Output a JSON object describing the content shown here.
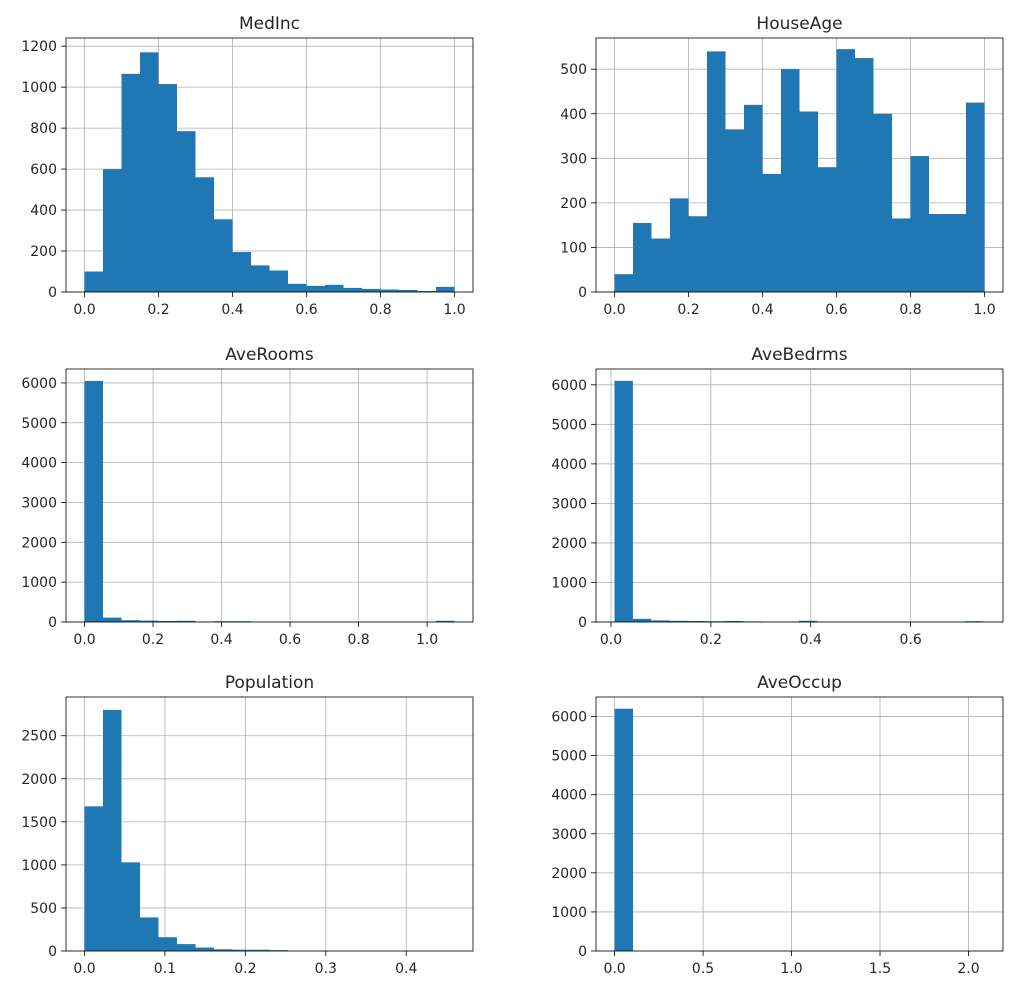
{
  "chart_data": [
    {
      "type": "bar",
      "title": "MedInc",
      "grid": true,
      "color": "#1f77b4",
      "xlim": [
        -0.05,
        1.05
      ],
      "ylim": [
        0,
        1240
      ],
      "xticks": [
        0.0,
        0.2,
        0.4,
        0.6,
        0.8,
        1.0
      ],
      "xtick_labels": [
        "0.0",
        "0.2",
        "0.4",
        "0.6",
        "0.8",
        "1.0"
      ],
      "yticks": [
        0,
        200,
        400,
        600,
        800,
        1000,
        1200
      ],
      "ytick_labels": [
        "0",
        "200",
        "400",
        "600",
        "800",
        "1000",
        "1200"
      ],
      "bin_start": 0.0,
      "bin_end": 1.0,
      "values": [
        100,
        600,
        1065,
        1170,
        1015,
        785,
        560,
        355,
        195,
        130,
        105,
        40,
        30,
        35,
        20,
        15,
        12,
        10,
        5,
        25
      ]
    },
    {
      "type": "bar",
      "title": "HouseAge",
      "grid": true,
      "color": "#1f77b4",
      "xlim": [
        -0.05,
        1.05
      ],
      "ylim": [
        0,
        570
      ],
      "xticks": [
        0.0,
        0.2,
        0.4,
        0.6,
        0.8,
        1.0
      ],
      "xtick_labels": [
        "0.0",
        "0.2",
        "0.4",
        "0.6",
        "0.8",
        "1.0"
      ],
      "yticks": [
        0,
        100,
        200,
        300,
        400,
        500
      ],
      "ytick_labels": [
        "0",
        "100",
        "200",
        "300",
        "400",
        "500"
      ],
      "bin_start": 0.0,
      "bin_end": 1.0,
      "values": [
        40,
        155,
        120,
        210,
        170,
        540,
        365,
        420,
        265,
        500,
        405,
        280,
        545,
        525,
        400,
        165,
        305,
        175,
        175,
        425
      ]
    },
    {
      "type": "bar",
      "title": "AveRooms",
      "grid": true,
      "color": "#1f77b4",
      "xlim": [
        -0.054,
        1.134
      ],
      "ylim": [
        0,
        6350
      ],
      "xticks": [
        0.0,
        0.2,
        0.4,
        0.6,
        0.8,
        1.0
      ],
      "xtick_labels": [
        "0.0",
        "0.2",
        "0.4",
        "0.6",
        "0.8",
        "1.0"
      ],
      "yticks": [
        0,
        1000,
        2000,
        3000,
        4000,
        5000,
        6000
      ],
      "ytick_labels": [
        "0",
        "1000",
        "2000",
        "3000",
        "4000",
        "5000",
        "6000"
      ],
      "bin_start": 0.0,
      "bin_end": 1.08,
      "values": [
        6050,
        110,
        45,
        35,
        25,
        30,
        5,
        20,
        20,
        0,
        0,
        0,
        0,
        0,
        0,
        0,
        0,
        0,
        0,
        30
      ]
    },
    {
      "type": "bar",
      "title": "AveBedrms",
      "grid": true,
      "color": "#1f77b4",
      "xlim": [
        -0.03,
        0.785
      ],
      "ylim": [
        0,
        6400
      ],
      "xticks": [
        0.0,
        0.2,
        0.4,
        0.6
      ],
      "xtick_labels": [
        "0.0",
        "0.2",
        "0.4",
        "0.6"
      ],
      "yticks": [
        0,
        1000,
        2000,
        3000,
        4000,
        5000,
        6000
      ],
      "ytick_labels": [
        "0",
        "1000",
        "2000",
        "3000",
        "4000",
        "5000",
        "6000"
      ],
      "bin_start": 0.007,
      "bin_end": 0.745,
      "values": [
        6100,
        80,
        40,
        30,
        25,
        20,
        25,
        15,
        0,
        0,
        30,
        0,
        0,
        0,
        0,
        0,
        0,
        0,
        0,
        20
      ]
    },
    {
      "type": "bar",
      "title": "Population",
      "grid": true,
      "color": "#1f77b4",
      "xlim": [
        -0.023,
        0.483
      ],
      "ylim": [
        0,
        2950
      ],
      "xticks": [
        0.0,
        0.1,
        0.2,
        0.3,
        0.4
      ],
      "xtick_labels": [
        "0.0",
        "0.1",
        "0.2",
        "0.3",
        "0.4"
      ],
      "yticks": [
        0,
        500,
        1000,
        1500,
        2000,
        2500
      ],
      "ytick_labels": [
        "0",
        "500",
        "1000",
        "1500",
        "2000",
        "2500"
      ],
      "bin_start": 0.0,
      "bin_end": 0.46,
      "values": [
        1680,
        2800,
        1030,
        390,
        160,
        80,
        40,
        20,
        15,
        15,
        10,
        0,
        0,
        0,
        0,
        0,
        0,
        0,
        0,
        0
      ]
    },
    {
      "type": "bar",
      "title": "AveOccup",
      "grid": true,
      "color": "#1f77b4",
      "xlim": [
        -0.105,
        2.195
      ],
      "ylim": [
        0,
        6500
      ],
      "xticks": [
        0.0,
        0.5,
        1.0,
        1.5,
        2.0
      ],
      "xtick_labels": [
        "0.0",
        "0.5",
        "1.0",
        "1.5",
        "2.0"
      ],
      "yticks": [
        0,
        1000,
        2000,
        3000,
        4000,
        5000,
        6000
      ],
      "ytick_labels": [
        "0",
        "1000",
        "2000",
        "3000",
        "4000",
        "5000",
        "6000"
      ],
      "bin_start": 0.0,
      "bin_end": 2.09,
      "values": [
        6200,
        0,
        0,
        0,
        0,
        0,
        0,
        0,
        0,
        0,
        0,
        0,
        0,
        0,
        0,
        0,
        0,
        0,
        0,
        0
      ]
    }
  ]
}
